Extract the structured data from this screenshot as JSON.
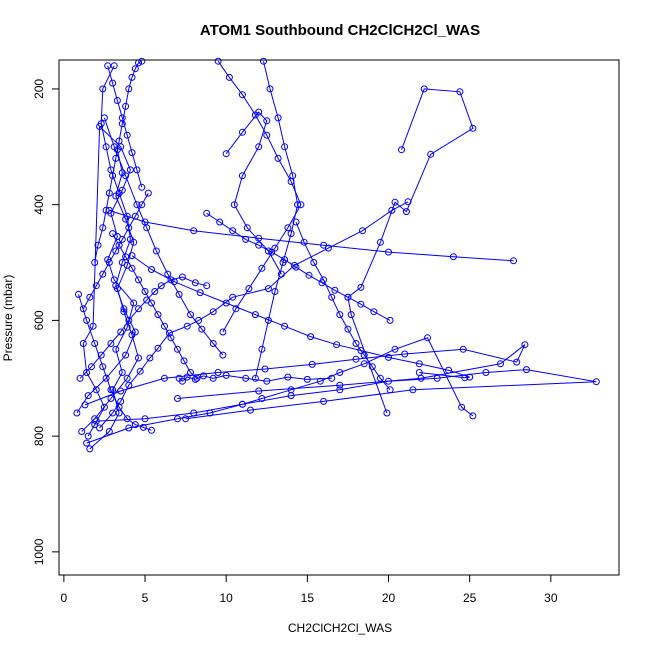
{
  "chart_data": {
    "type": "scatter",
    "title": "ATOM1 Southbound CH2ClCH2Cl_WAS",
    "xlabel": "CH2ClCH2Cl_WAS",
    "ylabel": "Pressure (mbar)",
    "xlim": [
      -0.3,
      34.2
    ],
    "ylim": [
      1040,
      150
    ],
    "y_reversed": true,
    "grid": false,
    "x_ticks": [
      0,
      5,
      10,
      15,
      20,
      25,
      30
    ],
    "y_ticks": [
      200,
      400,
      600,
      800,
      1000
    ],
    "series_color": "#0000ff",
    "series": [
      {
        "x": [
          1.6,
          2.8,
          3.4,
          3.0,
          3.6,
          3.2,
          3.9,
          4.3,
          3.1,
          2.7,
          3.3,
          2.9,
          3.6,
          4.1,
          3.5,
          2.2,
          1.8,
          1.2,
          1.4,
          2.0,
          2.5,
          1.9,
          1.5
        ],
        "y": [
          822,
          792,
          760,
          720,
          690,
          650,
          612,
          570,
          530,
          495,
          455,
          415,
          375,
          340,
          300,
          265,
          610,
          640,
          690,
          720,
          750,
          780,
          800
        ]
      },
      {
        "x": [
          0.8,
          1.5,
          2.6,
          3.8,
          4.4,
          3.7,
          3.2,
          3.6,
          4.1,
          3.9,
          3.4,
          2.9,
          2.6,
          2.3,
          2.4,
          3.1
        ],
        "y": [
          760,
          730,
          700,
          660,
          620,
          580,
          540,
          500,
          460,
          420,
          380,
          340,
          300,
          260,
          200,
          160
        ]
      },
      {
        "x": [
          1.1,
          1.9,
          2.9,
          3.9,
          4.6,
          4.2,
          3.7,
          3.3,
          3.9,
          4.3,
          3.8,
          3.2,
          3.6,
          3.3
        ],
        "y": [
          792,
          770,
          735,
          700,
          665,
          625,
          585,
          545,
          505,
          465,
          425,
          385,
          345,
          305
        ]
      },
      {
        "x": [
          2.2,
          3.0,
          3.5,
          4.0,
          4.7,
          5.3,
          5.8,
          6.5,
          7.6,
          8.3,
          9.2,
          10.4,
          12.6,
          14.2,
          16.3,
          18.4,
          20.2,
          21.2
        ],
        "y": [
          786,
          760,
          740,
          712,
          688,
          665,
          648,
          622,
          610,
          600,
          585,
          560,
          545,
          505,
          475,
          445,
          410,
          395
        ]
      },
      {
        "x": [
          1.4,
          4.0,
          7.0,
          9.0,
          11.0,
          12.2,
          14.0,
          15.8,
          17.0,
          18.5,
          20.4,
          22.4,
          24.5,
          25.2
        ],
        "y": [
          812,
          786,
          770,
          760,
          745,
          735,
          720,
          705,
          690,
          675,
          650,
          630,
          750,
          765
        ]
      },
      {
        "x": [
          2.0,
          5.0,
          8.0,
          11.0,
          14.0,
          17.0,
          20.0,
          23.0,
          26.0,
          28.5,
          32.8,
          21.5,
          16.0,
          11.5,
          7.5
        ],
        "y": [
          774,
          770,
          760,
          745,
          730,
          720,
          705,
          700,
          690,
          685,
          706,
          720,
          740,
          755,
          770
        ]
      },
      {
        "x": [
          1.3,
          3.5,
          6.2,
          9.5,
          12.4,
          15.3,
          18.0,
          21.0,
          24.6,
          27.9,
          28.4,
          26.9,
          22.0,
          17.0,
          12.0,
          7.0
        ],
        "y": [
          746,
          722,
          700,
          690,
          684,
          676,
          667,
          658,
          650,
          672,
          642,
          675,
          700,
          712,
          722,
          735
        ]
      },
      {
        "x": [
          4.2,
          5.4,
          6.8,
          8.4,
          10.0,
          11.8,
          13.6,
          15.2,
          16.8,
          18.3,
          20.0,
          21.9,
          23.7,
          25.0,
          24.7,
          21.9
        ],
        "y": [
          488,
          512,
          533,
          552,
          570,
          590,
          610,
          628,
          642,
          652,
          664,
          675,
          686,
          698,
          699,
          690
        ]
      },
      {
        "x": [
          8.8,
          9.6,
          10.4,
          11.2,
          12.0,
          12.8,
          13.6,
          14.3,
          15.1,
          15.9,
          16.7,
          17.5,
          18.3,
          19.1,
          20.1
        ],
        "y": [
          415,
          430,
          445,
          460,
          470,
          482,
          495,
          508,
          522,
          535,
          548,
          560,
          572,
          585,
          600
        ]
      },
      {
        "x": [
          9.5,
          10.2,
          11.0,
          11.8,
          12.5,
          13.2,
          14.0,
          14.6,
          13.8,
          13.0,
          12.2,
          11.4,
          10.6,
          9.8
        ],
        "y": [
          152,
          180,
          210,
          245,
          280,
          320,
          360,
          400,
          440,
          475,
          510,
          545,
          580,
          620
        ]
      },
      {
        "x": [
          12.3,
          12.7,
          13.2,
          13.6,
          14.1,
          14.4,
          14.0,
          13.5,
          13.0,
          12.6,
          12.2,
          11.8
        ],
        "y": [
          152,
          200,
          250,
          300,
          350,
          400,
          450,
          500,
          550,
          600,
          650,
          700
        ]
      },
      {
        "x": [
          14.3,
          14.8,
          15.4,
          16.0,
          16.5,
          17.0,
          17.5,
          18.0,
          18.5,
          19.0,
          19.5,
          20.1
        ],
        "y": [
          430,
          465,
          500,
          530,
          560,
          590,
          615,
          640,
          660,
          680,
          700,
          720
        ]
      },
      {
        "x": [
          27.7,
          24.0,
          20.0,
          16.0,
          12.0,
          8.0,
          5.0,
          2.8
        ],
        "y": [
          497,
          490,
          482,
          470,
          458,
          445,
          430,
          410
        ]
      },
      {
        "x": [
          20.8,
          22.2,
          24.4,
          25.2,
          22.6,
          21.1,
          20.4,
          19.5,
          18.3,
          17.5,
          17.7,
          19.9
        ],
        "y": [
          305,
          200,
          205,
          268,
          313,
          412,
          396,
          465,
          543,
          560,
          590,
          760
        ]
      },
      {
        "x": [
          10.0,
          11.0,
          12.0,
          12.5,
          12.0,
          11.0,
          10.5,
          11.3,
          12.6,
          13.4
        ],
        "y": [
          312,
          275,
          240,
          255,
          300,
          350,
          400,
          440,
          480,
          520
        ]
      },
      {
        "x": [
          1.0,
          1.7,
          2.3,
          2.9,
          3.5,
          4.0,
          4.6,
          5.1,
          5.6,
          6.0,
          6.6,
          7.3,
          8.1,
          8.8
        ],
        "y": [
          700,
          680,
          660,
          640,
          620,
          600,
          580,
          565,
          550,
          540,
          530,
          525,
          535,
          540
        ]
      },
      {
        "x": [
          2.5,
          3.1,
          3.8,
          4.5,
          5.1,
          5.7,
          6.4,
          7.1,
          7.8,
          8.5,
          9.2,
          9.8
        ],
        "y": [
          250,
          300,
          350,
          400,
          440,
          480,
          520,
          555,
          590,
          615,
          640,
          660
        ]
      },
      {
        "x": [
          2.7,
          3.0,
          3.3,
          3.6,
          3.9,
          4.2,
          4.5,
          4.8
        ],
        "y": [
          160,
          190,
          220,
          250,
          280,
          310,
          340,
          370
        ]
      },
      {
        "x": [
          1.9,
          2.1,
          2.4,
          2.6,
          2.8,
          3.0,
          3.2,
          3.4,
          3.6,
          3.8,
          4.0,
          4.2,
          4.4,
          4.6,
          4.8
        ],
        "y": [
          500,
          470,
          440,
          410,
          380,
          350,
          320,
          290,
          260,
          230,
          200,
          180,
          165,
          155,
          152
        ]
      },
      {
        "x": [
          3.0,
          3.4,
          3.8,
          4.2,
          4.6,
          5.0,
          5.4,
          5.8,
          6.2,
          6.6,
          7.0,
          7.4,
          7.8,
          8.2
        ],
        "y": [
          450,
          470,
          490,
          510,
          530,
          550,
          570,
          590,
          610,
          630,
          650,
          670,
          690,
          700
        ]
      },
      {
        "x": [
          1.2,
          1.6,
          2.0,
          2.4,
          2.8,
          3.2,
          3.6,
          4.0,
          4.4,
          4.8,
          5.2
        ],
        "y": [
          580,
          560,
          540,
          520,
          500,
          480,
          460,
          440,
          420,
          400,
          380
        ]
      },
      {
        "x": [
          0.9,
          1.4,
          1.9,
          2.4,
          2.9,
          3.4,
          3.9,
          4.4,
          4.9,
          5.4
        ],
        "y": [
          555,
          600,
          640,
          680,
          720,
          750,
          770,
          780,
          785,
          790
        ]
      },
      {
        "x": [
          7.1,
          7.3,
          7.6,
          8.1,
          8.6,
          9.2,
          10.0,
          11.2,
          12.5,
          13.8,
          15.0,
          16.5
        ],
        "y": [
          700,
          705,
          698,
          702,
          696,
          700,
          695,
          700,
          705,
          698,
          702,
          700
        ]
      }
    ]
  }
}
